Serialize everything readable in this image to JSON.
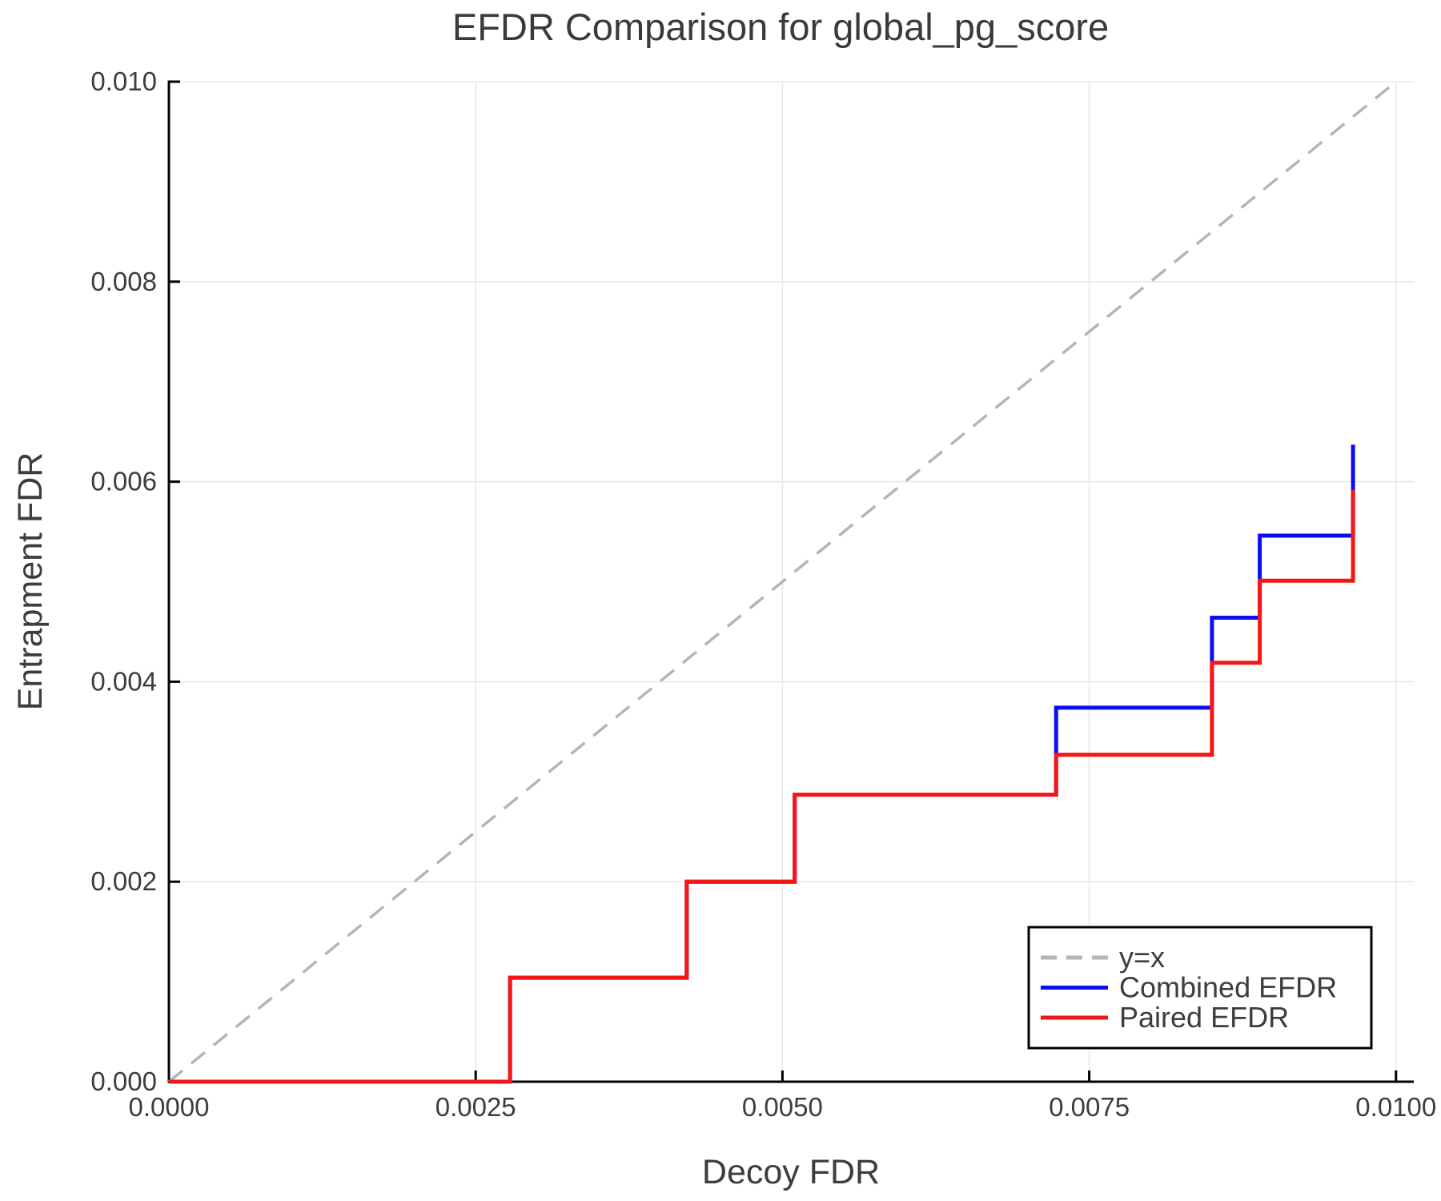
{
  "page": {
    "background": "#ffffff"
  },
  "chart_data": {
    "type": "line",
    "title": "EFDR Comparison for global_pg_score",
    "xlabel": "Decoy FDR",
    "ylabel": "Entrapment FDR",
    "xlim": [
      0,
      0.010145
    ],
    "ylim": [
      0,
      0.01
    ],
    "grid": true,
    "grid_color": "#e8e8e8",
    "axis_color": "#000000",
    "text_color": "#3d3d3d",
    "xticks": {
      "values": [
        0,
        0.0025,
        0.005,
        0.0075,
        0.01
      ],
      "labels": [
        "0.0000",
        "0.0025",
        "0.0050",
        "0.0075",
        "0.0100"
      ]
    },
    "yticks": {
      "values": [
        0,
        0.002,
        0.004,
        0.006,
        0.008,
        0.01
      ],
      "labels": [
        "0.000",
        "0.002",
        "0.004",
        "0.006",
        "0.008",
        "0.010"
      ]
    },
    "legend": {
      "position": "lower right",
      "entries": [
        {
          "label": "y=x",
          "color": "#b5b5b5",
          "dash": true
        },
        {
          "label": "Combined EFDR",
          "color": "#0d0df2",
          "dash": false
        },
        {
          "label": "Paired EFDR",
          "color": "#f41717",
          "dash": false
        }
      ]
    },
    "series": [
      {
        "name": "y=x",
        "color": "#b5b5b5",
        "dash": true,
        "width": 3.5,
        "points": [
          [
            0,
            0
          ],
          [
            0.01,
            0.01
          ]
        ]
      },
      {
        "name": "Combined EFDR",
        "color": "#0d0df2",
        "dash": false,
        "width": 5,
        "points": [
          [
            0,
            0
          ],
          [
            0.00278,
            0
          ],
          [
            0.00278,
            0.00104
          ],
          [
            0.00422,
            0.00104
          ],
          [
            0.00422,
            0.002
          ],
          [
            0.0051,
            0.002
          ],
          [
            0.0051,
            0.00287
          ],
          [
            0.00723,
            0.00287
          ],
          [
            0.00723,
            0.00374
          ],
          [
            0.0085,
            0.00374
          ],
          [
            0.0085,
            0.00464
          ],
          [
            0.00889,
            0.00464
          ],
          [
            0.00889,
            0.00546
          ],
          [
            0.00965,
            0.00546
          ],
          [
            0.00965,
            0.00637
          ]
        ]
      },
      {
        "name": "Paired EFDR",
        "color": "#f41717",
        "dash": false,
        "width": 5,
        "points": [
          [
            0,
            0
          ],
          [
            0.00278,
            0
          ],
          [
            0.00278,
            0.00104
          ],
          [
            0.00422,
            0.00104
          ],
          [
            0.00422,
            0.002
          ],
          [
            0.0051,
            0.002
          ],
          [
            0.0051,
            0.00287
          ],
          [
            0.00723,
            0.00287
          ],
          [
            0.00723,
            0.00327
          ],
          [
            0.0085,
            0.00327
          ],
          [
            0.0085,
            0.00419
          ],
          [
            0.00889,
            0.00419
          ],
          [
            0.00889,
            0.00501
          ],
          [
            0.00965,
            0.00501
          ],
          [
            0.00965,
            0.00592
          ]
        ]
      }
    ]
  }
}
